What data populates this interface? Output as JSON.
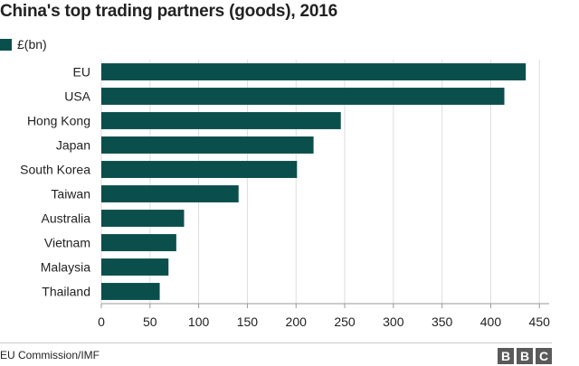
{
  "colors": {
    "bar": "#0b4f4c",
    "grid": "#dddddd",
    "axis": "#999999",
    "text": "#222222",
    "logo": "#5a5a5a"
  },
  "legend": {
    "label": "£(bn)"
  },
  "source": "EU Commission/IMF",
  "logo": {
    "letters": [
      "B",
      "B",
      "C"
    ],
    "icon": "bbc-logo"
  },
  "chart_data": {
    "type": "bar",
    "orientation": "horizontal",
    "title": "China's top trading partners (goods), 2016",
    "categories": [
      "EU",
      "USA",
      "Hong Kong",
      "Japan",
      "South Korea",
      "Taiwan",
      "Australia",
      "Vietnam",
      "Malaysia",
      "Thailand"
    ],
    "series": [
      {
        "name": "£(bn)",
        "values": [
          436,
          414,
          246,
          218,
          201,
          141,
          85,
          77,
          69,
          60
        ]
      }
    ],
    "xlim": [
      0,
      460
    ],
    "xticks": [
      0,
      50,
      100,
      150,
      200,
      250,
      300,
      350,
      400,
      450
    ],
    "xlabel": "",
    "ylabel": "",
    "grid": true,
    "legend_position": "top-left"
  }
}
